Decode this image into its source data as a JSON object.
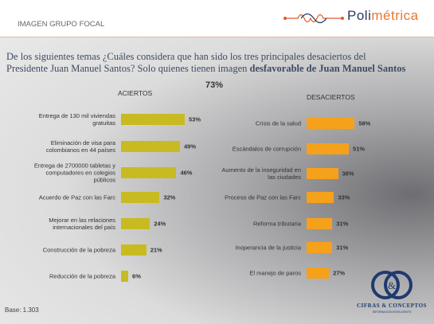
{
  "header": {
    "section": "IMAGEN GRUPO FOCAL",
    "brand_a": "Poli",
    "brand_b": "métrica",
    "question_line1": "De los siguientes temas ¿Cuáles considera que han sido los tres principales desaciertos del",
    "question_line2": "Presidente Juan Manuel Santos?  Solo quienes tienen imagen ",
    "question_bold": "desfavorable de Juan Manuel Santos",
    "share": "73%"
  },
  "footer": {
    "base": "Base: 1.303",
    "company": "CIFRAS & CONCEPTOS",
    "tagline": "INFORMACIÓN INTELIGENTE"
  },
  "chart_data": [
    {
      "type": "bar",
      "orientation": "horizontal",
      "title": "ACIERTOS",
      "color": "#c8bb22",
      "categories": [
        "Entrega de 130 mil viviendas gratuitas",
        "Eliminación de visa para colombianos en 44 países",
        "Entrega de 2700000 tabletas y computadores en colegios públicos",
        "Acuerdo de Paz con las Farc",
        "Mejorar en las relaciones internacionales del país",
        "Construcción de la pobreza",
        "Reducción de la pobreza"
      ],
      "values": [
        53,
        49,
        46,
        32,
        24,
        21,
        6
      ],
      "value_labels": [
        "53%",
        "49%",
        "46%",
        "32%",
        "24%",
        "21%",
        "6%"
      ]
    },
    {
      "type": "bar",
      "orientation": "horizontal",
      "title": "DESACIERTOS",
      "color": "#f5a11b",
      "categories": [
        "Crisis de la salud",
        "Escándalos de corrupción",
        "Aumento de la inseguridad en las ciudades",
        "Proceso de Paz con las Farc",
        "Reforma tributaria",
        "Inoperancia de la justicia",
        "El manejo de paros"
      ],
      "values": [
        58,
        51,
        38,
        33,
        31,
        31,
        27
      ],
      "value_labels": [
        "58%",
        "51%",
        "38%",
        "33%",
        "31%",
        "31%",
        "27%"
      ]
    }
  ]
}
